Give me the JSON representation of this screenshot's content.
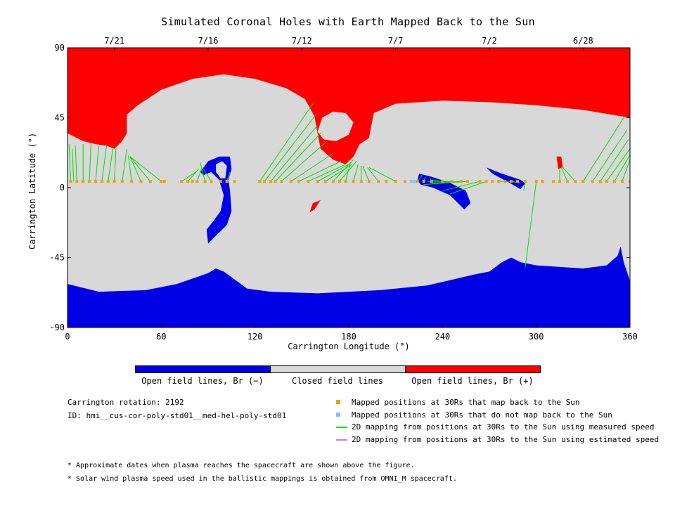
{
  "title": "Simulated Coronal Holes with Earth Mapped Back to the Sun",
  "colors": {
    "open_negative": "#0000e6",
    "closed": "#d8d8d8",
    "open_positive": "#ff0000",
    "mapped": "#f0a000",
    "not_mapped": "#80c0ff",
    "measured_speed": "#00e000",
    "estimated_speed": "#c080ff"
  },
  "chart_data": {
    "type": "heatmap",
    "title": "Simulated Coronal Holes with Earth Mapped Back to the Sun",
    "xlabel": "Carrington Longitude (°)",
    "ylabel": "Carrington Latitude (°)",
    "xlim": [
      0,
      360
    ],
    "ylim": [
      -90,
      90
    ],
    "xticks": [
      "0",
      "60",
      "120",
      "180",
      "240",
      "300",
      "360"
    ],
    "yticks": [
      "90",
      "45",
      "0",
      "-45",
      "-90"
    ],
    "top_axis_dates": [
      {
        "label": "7/21",
        "lon": 30
      },
      {
        "label": "7/16",
        "lon": 90
      },
      {
        "label": "7/12",
        "lon": 150
      },
      {
        "label": "7/7",
        "lon": 210
      },
      {
        "label": "7/2",
        "lon": 270
      },
      {
        "label": "6/28",
        "lon": 330
      }
    ],
    "regions": {
      "north_positive": [
        [
          0,
          90
        ],
        [
          360,
          90
        ],
        [
          360,
          45
        ],
        [
          330,
          50
        ],
        [
          300,
          53
        ],
        [
          270,
          55
        ],
        [
          240,
          56
        ],
        [
          210,
          54
        ],
        [
          196,
          48
        ],
        [
          193,
          32
        ],
        [
          187,
          28
        ],
        [
          183,
          20
        ],
        [
          178,
          15
        ],
        [
          170,
          18
        ],
        [
          162,
          25
        ],
        [
          160,
          35
        ],
        [
          158,
          46
        ],
        [
          152,
          57
        ],
        [
          140,
          64
        ],
        [
          120,
          70
        ],
        [
          100,
          73
        ],
        [
          80,
          70
        ],
        [
          60,
          63
        ],
        [
          45,
          53
        ],
        [
          38,
          47
        ],
        [
          38,
          35
        ],
        [
          35,
          30
        ],
        [
          30,
          25
        ],
        [
          25,
          27
        ],
        [
          18,
          28
        ],
        [
          10,
          30
        ],
        [
          0,
          35
        ]
      ],
      "north_positive_blob": [
        [
          160,
          36
        ],
        [
          163,
          45
        ],
        [
          170,
          49
        ],
        [
          178,
          48
        ],
        [
          183,
          42
        ],
        [
          180,
          34
        ],
        [
          172,
          30
        ],
        [
          164,
          31
        ]
      ],
      "south_negative": [
        [
          0,
          -62
        ],
        [
          20,
          -67
        ],
        [
          50,
          -66
        ],
        [
          70,
          -62
        ],
        [
          90,
          -55
        ],
        [
          95,
          -52
        ],
        [
          100,
          -54
        ],
        [
          115,
          -65
        ],
        [
          130,
          -67
        ],
        [
          160,
          -68
        ],
        [
          200,
          -66
        ],
        [
          230,
          -63
        ],
        [
          260,
          -56
        ],
        [
          270,
          -54
        ],
        [
          278,
          -48
        ],
        [
          284,
          -45
        ],
        [
          290,
          -48
        ],
        [
          300,
          -50
        ],
        [
          330,
          -52
        ],
        [
          345,
          -50
        ],
        [
          352,
          -44
        ],
        [
          354,
          -38
        ],
        [
          356,
          -48
        ],
        [
          360,
          -60
        ],
        [
          360,
          -90
        ],
        [
          0,
          -90
        ]
      ],
      "negative_loop_outer": [
        [
          85,
          10
        ],
        [
          90,
          17
        ],
        [
          97,
          20
        ],
        [
          104,
          20
        ],
        [
          105,
          12
        ],
        [
          103,
          5
        ],
        [
          104,
          -2
        ],
        [
          105,
          -15
        ],
        [
          102,
          -24
        ],
        [
          96,
          -30
        ],
        [
          90,
          -36
        ],
        [
          89,
          -27
        ],
        [
          93,
          -22
        ],
        [
          98,
          -15
        ],
        [
          100,
          -5
        ],
        [
          97,
          5
        ],
        [
          92,
          10
        ],
        [
          87,
          8
        ]
      ],
      "negative_loop_inner": [
        [
          95,
          15
        ],
        [
          99,
          17
        ],
        [
          102,
          14
        ],
        [
          101,
          6
        ],
        [
          98,
          6
        ],
        [
          95,
          10
        ]
      ],
      "negative_streak": [
        [
          225,
          9
        ],
        [
          233,
          7
        ],
        [
          245,
          3
        ],
        [
          255,
          -2
        ],
        [
          258,
          -10
        ],
        [
          254,
          -14
        ],
        [
          245,
          -5
        ],
        [
          234,
          0
        ],
        [
          226,
          2
        ],
        [
          224,
          5
        ]
      ],
      "negative_streak_east": [
        [
          268,
          13
        ],
        [
          278,
          9
        ],
        [
          290,
          5
        ],
        [
          293,
          3
        ],
        [
          290,
          -1
        ],
        [
          283,
          3
        ],
        [
          272,
          9
        ]
      ],
      "positive_small_east": [
        [
          313,
          20
        ],
        [
          316,
          20
        ],
        [
          317,
          13
        ],
        [
          314,
          12
        ]
      ],
      "positive_small_south": [
        [
          157,
          -10
        ],
        [
          162,
          -8
        ],
        [
          158,
          -14
        ],
        [
          155,
          -16
        ]
      ]
    },
    "mapped_positions_lat": 4,
    "mapped_positions_lon": [
      2,
      6,
      10,
      14,
      18,
      22,
      26,
      30,
      35,
      41,
      47,
      53,
      60,
      62,
      73,
      77,
      80,
      83,
      88,
      92,
      98,
      102,
      107,
      123,
      126,
      130,
      133,
      137,
      143,
      148,
      154,
      160,
      165,
      170,
      174,
      178,
      183,
      188,
      193,
      199,
      204,
      210,
      216,
      224,
      228,
      233,
      240,
      246,
      252,
      256,
      264,
      268,
      272,
      276,
      280,
      284,
      288,
      293,
      300,
      304,
      311,
      315,
      320,
      325,
      330,
      336,
      341,
      345,
      350,
      355,
      360
    ],
    "not_mapped_positions_lon": [
      220,
      222
    ],
    "field_line_mappings": [
      {
        "from": [
          2,
          4
        ],
        "to": [
          1,
          28
        ]
      },
      {
        "from": [
          4,
          4
        ],
        "to": [
          3,
          25
        ]
      },
      {
        "from": [
          6,
          4
        ],
        "to": [
          5,
          27
        ]
      },
      {
        "from": [
          10,
          4
        ],
        "to": [
          10,
          28
        ]
      },
      {
        "from": [
          14,
          4
        ],
        "to": [
          15,
          29
        ]
      },
      {
        "from": [
          18,
          4
        ],
        "to": [
          20,
          27
        ]
      },
      {
        "from": [
          22,
          4
        ],
        "to": [
          25,
          27
        ]
      },
      {
        "from": [
          26,
          4
        ],
        "to": [
          29,
          25
        ]
      },
      {
        "from": [
          30,
          4
        ],
        "to": [
          31,
          25
        ]
      },
      {
        "from": [
          35,
          4
        ],
        "to": [
          38,
          25
        ]
      },
      {
        "from": [
          41,
          4
        ],
        "to": [
          39,
          21
        ]
      },
      {
        "from": [
          47,
          4
        ],
        "to": [
          40,
          20
        ]
      },
      {
        "from": [
          53,
          4
        ],
        "to": [
          40,
          20
        ]
      },
      {
        "from": [
          60,
          4
        ],
        "to": [
          40,
          20
        ]
      },
      {
        "from": [
          73,
          4
        ],
        "to": [
          82,
          10
        ]
      },
      {
        "from": [
          77,
          4
        ],
        "to": [
          84,
          12
        ]
      },
      {
        "from": [
          83,
          4
        ],
        "to": [
          86,
          13
        ]
      },
      {
        "from": [
          88,
          4
        ],
        "to": [
          85,
          16
        ]
      },
      {
        "from": [
          92,
          4
        ],
        "to": [
          87,
          12
        ]
      },
      {
        "from": [
          102,
          4
        ],
        "to": [
          104,
          10
        ]
      },
      {
        "from": [
          123,
          4
        ],
        "to": [
          157,
          54
        ]
      },
      {
        "from": [
          126,
          4
        ],
        "to": [
          159,
          47
        ]
      },
      {
        "from": [
          130,
          4
        ],
        "to": [
          160,
          40
        ]
      },
      {
        "from": [
          133,
          4
        ],
        "to": [
          162,
          35
        ]
      },
      {
        "from": [
          137,
          4
        ],
        "to": [
          165,
          29
        ]
      },
      {
        "from": [
          143,
          4
        ],
        "to": [
          170,
          22
        ]
      },
      {
        "from": [
          148,
          4
        ],
        "to": [
          175,
          17
        ]
      },
      {
        "from": [
          154,
          4
        ],
        "to": [
          178,
          15
        ]
      },
      {
        "from": [
          160,
          4
        ],
        "to": [
          180,
          15
        ]
      },
      {
        "from": [
          165,
          4
        ],
        "to": [
          182,
          15
        ]
      },
      {
        "from": [
          170,
          4
        ],
        "to": [
          183,
          18
        ]
      },
      {
        "from": [
          174,
          4
        ],
        "to": [
          185,
          17
        ]
      },
      {
        "from": [
          178,
          4
        ],
        "to": [
          181,
          16
        ]
      },
      {
        "from": [
          183,
          4
        ],
        "to": [
          186,
          15
        ]
      },
      {
        "from": [
          188,
          4
        ],
        "to": [
          188,
          14
        ]
      },
      {
        "from": [
          193,
          4
        ],
        "to": [
          189,
          14
        ]
      },
      {
        "from": [
          199,
          4
        ],
        "to": [
          192,
          13
        ]
      },
      {
        "from": [
          210,
          4
        ],
        "to": [
          193,
          13
        ]
      },
      {
        "from": [
          224,
          4
        ],
        "to": [
          227,
          8
        ]
      },
      {
        "from": [
          228,
          4
        ],
        "to": [
          229,
          7
        ]
      },
      {
        "from": [
          233,
          4
        ],
        "to": [
          232,
          6
        ]
      },
      {
        "from": [
          240,
          4
        ],
        "to": [
          233,
          5
        ]
      },
      {
        "from": [
          246,
          4
        ],
        "to": [
          230,
          4
        ]
      },
      {
        "from": [
          252,
          4
        ],
        "to": [
          233,
          3
        ]
      },
      {
        "from": [
          256,
          4
        ],
        "to": [
          228,
          2
        ]
      },
      {
        "from": [
          264,
          4
        ],
        "to": [
          240,
          -2
        ]
      },
      {
        "from": [
          268,
          4
        ],
        "to": [
          245,
          -4
        ]
      },
      {
        "from": [
          276,
          4
        ],
        "to": [
          286,
          4
        ]
      },
      {
        "from": [
          284,
          4
        ],
        "to": [
          290,
          3
        ]
      },
      {
        "from": [
          293,
          4
        ],
        "to": [
          292,
          -2
        ]
      },
      {
        "from": [
          300,
          4
        ],
        "to": [
          293,
          -51
        ]
      },
      {
        "from": [
          315,
          4
        ],
        "to": [
          315,
          12
        ]
      },
      {
        "from": [
          320,
          4
        ],
        "to": [
          316,
          13
        ]
      },
      {
        "from": [
          325,
          4
        ],
        "to": [
          317,
          13
        ]
      },
      {
        "from": [
          330,
          4
        ],
        "to": [
          356,
          45
        ]
      },
      {
        "from": [
          336,
          4
        ],
        "to": [
          358,
          37
        ]
      },
      {
        "from": [
          341,
          4
        ],
        "to": [
          359,
          31
        ]
      },
      {
        "from": [
          345,
          4
        ],
        "to": [
          360,
          25
        ]
      },
      {
        "from": [
          350,
          4
        ],
        "to": [
          360,
          21
        ]
      },
      {
        "from": [
          355,
          4
        ],
        "to": [
          360,
          18
        ]
      },
      {
        "from": [
          360,
          4
        ],
        "to": [
          360,
          15
        ]
      }
    ]
  },
  "colorbar": {
    "labels": [
      "Open field lines, Br (−)",
      "Closed field lines",
      "Open field lines, Br (+)"
    ]
  },
  "info": {
    "rotation": "Carrington rotation: 2192",
    "id": "ID: hmi__cus-cor-poly-std01__med-hel-poly-std01"
  },
  "legend": [
    {
      "label": "Mapped positions at 30Rs that map back to the Sun",
      "kind": "square",
      "color": "#f0a000"
    },
    {
      "label": "Mapped positions at 30Rs that do not map back to the Sun",
      "kind": "square",
      "color": "#80c0ff"
    },
    {
      "label": "2D mapping from positions at 30Rs to the Sun using measured speed",
      "kind": "line",
      "color": "#00e000"
    },
    {
      "label": "2D mapping from positions at 30Rs to the Sun using estimated speed",
      "kind": "line",
      "color": "#c080ff"
    }
  ],
  "notes": [
    "* Approximate dates when plasma reaches the spacecraft are shown above the figure.",
    "* Solar wind plasma speed used in the ballistic mappings is obtained from OMNI_M spacecraft."
  ]
}
